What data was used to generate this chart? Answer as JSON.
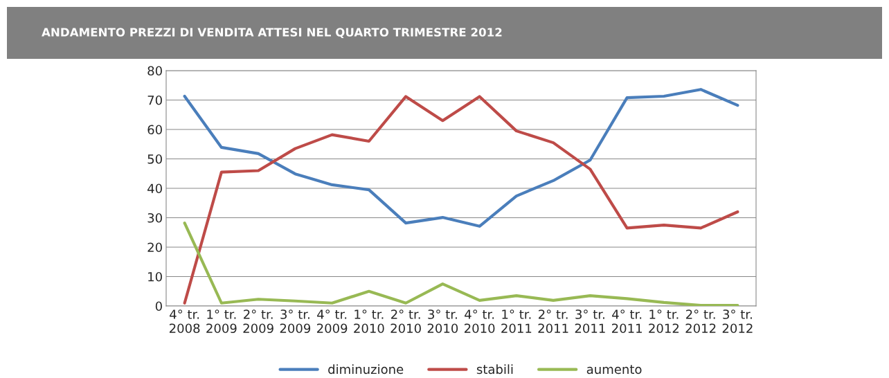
{
  "chart_data": {
    "type": "line",
    "title": "ANDAMENTO PREZZI DI VENDITA ATTESI NEL QUARTO TRIMESTRE 2012",
    "categories": [
      "4° tr.\n2008",
      "1° tr.\n2009",
      "2° tr.\n2009",
      "3° tr.\n2009",
      "4° tr.\n2009",
      "1° tr.\n2010",
      "2° tr.\n2010",
      "3° tr.\n2010",
      "4° tr.\n2010",
      "1° tr.\n2011",
      "2° tr.\n2011",
      "3° tr.\n2011",
      "4° tr.\n2011",
      "1° tr.\n2012",
      "2° tr.\n2012",
      "3° tr.\n2012"
    ],
    "series": [
      {
        "name": "diminuzione",
        "color": "#4a7ebb",
        "values": [
          71.3,
          53.9,
          51.8,
          44.9,
          41.2,
          39.5,
          28.2,
          30.1,
          27.1,
          37.4,
          42.6,
          49.6,
          70.8,
          71.3,
          73.6,
          68.2
        ]
      },
      {
        "name": "stabili",
        "color": "#be4b48",
        "values": [
          1,
          45.5,
          46,
          53.5,
          58.2,
          56,
          71.2,
          63,
          71.2,
          59.5,
          55.5,
          46.5,
          26.5,
          27.5,
          26.5,
          32
        ]
      },
      {
        "name": "aumento",
        "color": "#98b954",
        "values": [
          28.2,
          1,
          2.3,
          1.7,
          1,
          5,
          1,
          7.5,
          1.9,
          3.5,
          1.9,
          3.5,
          2.5,
          1.2,
          0.2,
          0.2
        ]
      }
    ],
    "ylim": [
      0,
      80
    ],
    "yticks": [
      0,
      10,
      20,
      30,
      40,
      50,
      60,
      70,
      80
    ],
    "grid": "y",
    "legend": "bottom",
    "marker": "none",
    "line_style": "solid"
  }
}
